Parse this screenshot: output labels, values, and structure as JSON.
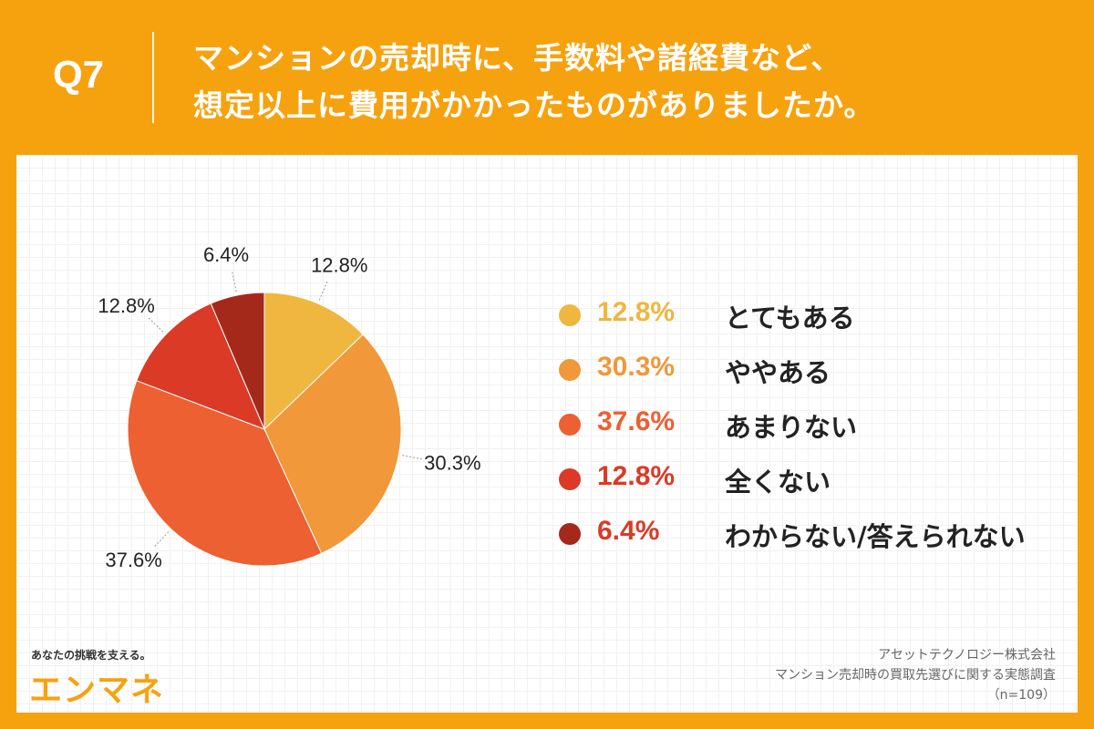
{
  "header": {
    "qnum": "Q7",
    "question_line1": "マンションの売却時に、手数料や諸経費など、",
    "question_line2": "想定以上に費用がかかったものがありましたか。"
  },
  "chart_data": {
    "type": "pie",
    "title": "マンションの売却時に、手数料や諸経費など、想定以上に費用がかかったものがありましたか。",
    "slices": [
      {
        "label": "とてもある",
        "value": 12.8,
        "pct_text": "12.8%",
        "color": "#EFB640"
      },
      {
        "label": "ややある",
        "value": 30.3,
        "pct_text": "30.3%",
        "color": "#F0983A"
      },
      {
        "label": "あまりない",
        "value": 37.6,
        "pct_text": "37.6%",
        "color": "#EC6032"
      },
      {
        "label": "全くない",
        "value": 12.8,
        "pct_text": "12.8%",
        "color": "#DA3A26"
      },
      {
        "label": "わからない/答えられない",
        "value": 6.4,
        "pct_text": "6.4%",
        "color": "#A5291A"
      }
    ],
    "legend_placement": "right",
    "pct_text_colors": [
      "#EFB640",
      "#F0983A",
      "#EC6032",
      "#DA3A26",
      "#DA3A26"
    ]
  },
  "footer": {
    "tagline": "あなたの挑戦を支える。",
    "logo": "エンマネ",
    "source_company": "アセットテクノロジー株式会社",
    "source_survey": "マンション売却時の買取先選びに関する実態調査",
    "sample": "（n=109）"
  }
}
